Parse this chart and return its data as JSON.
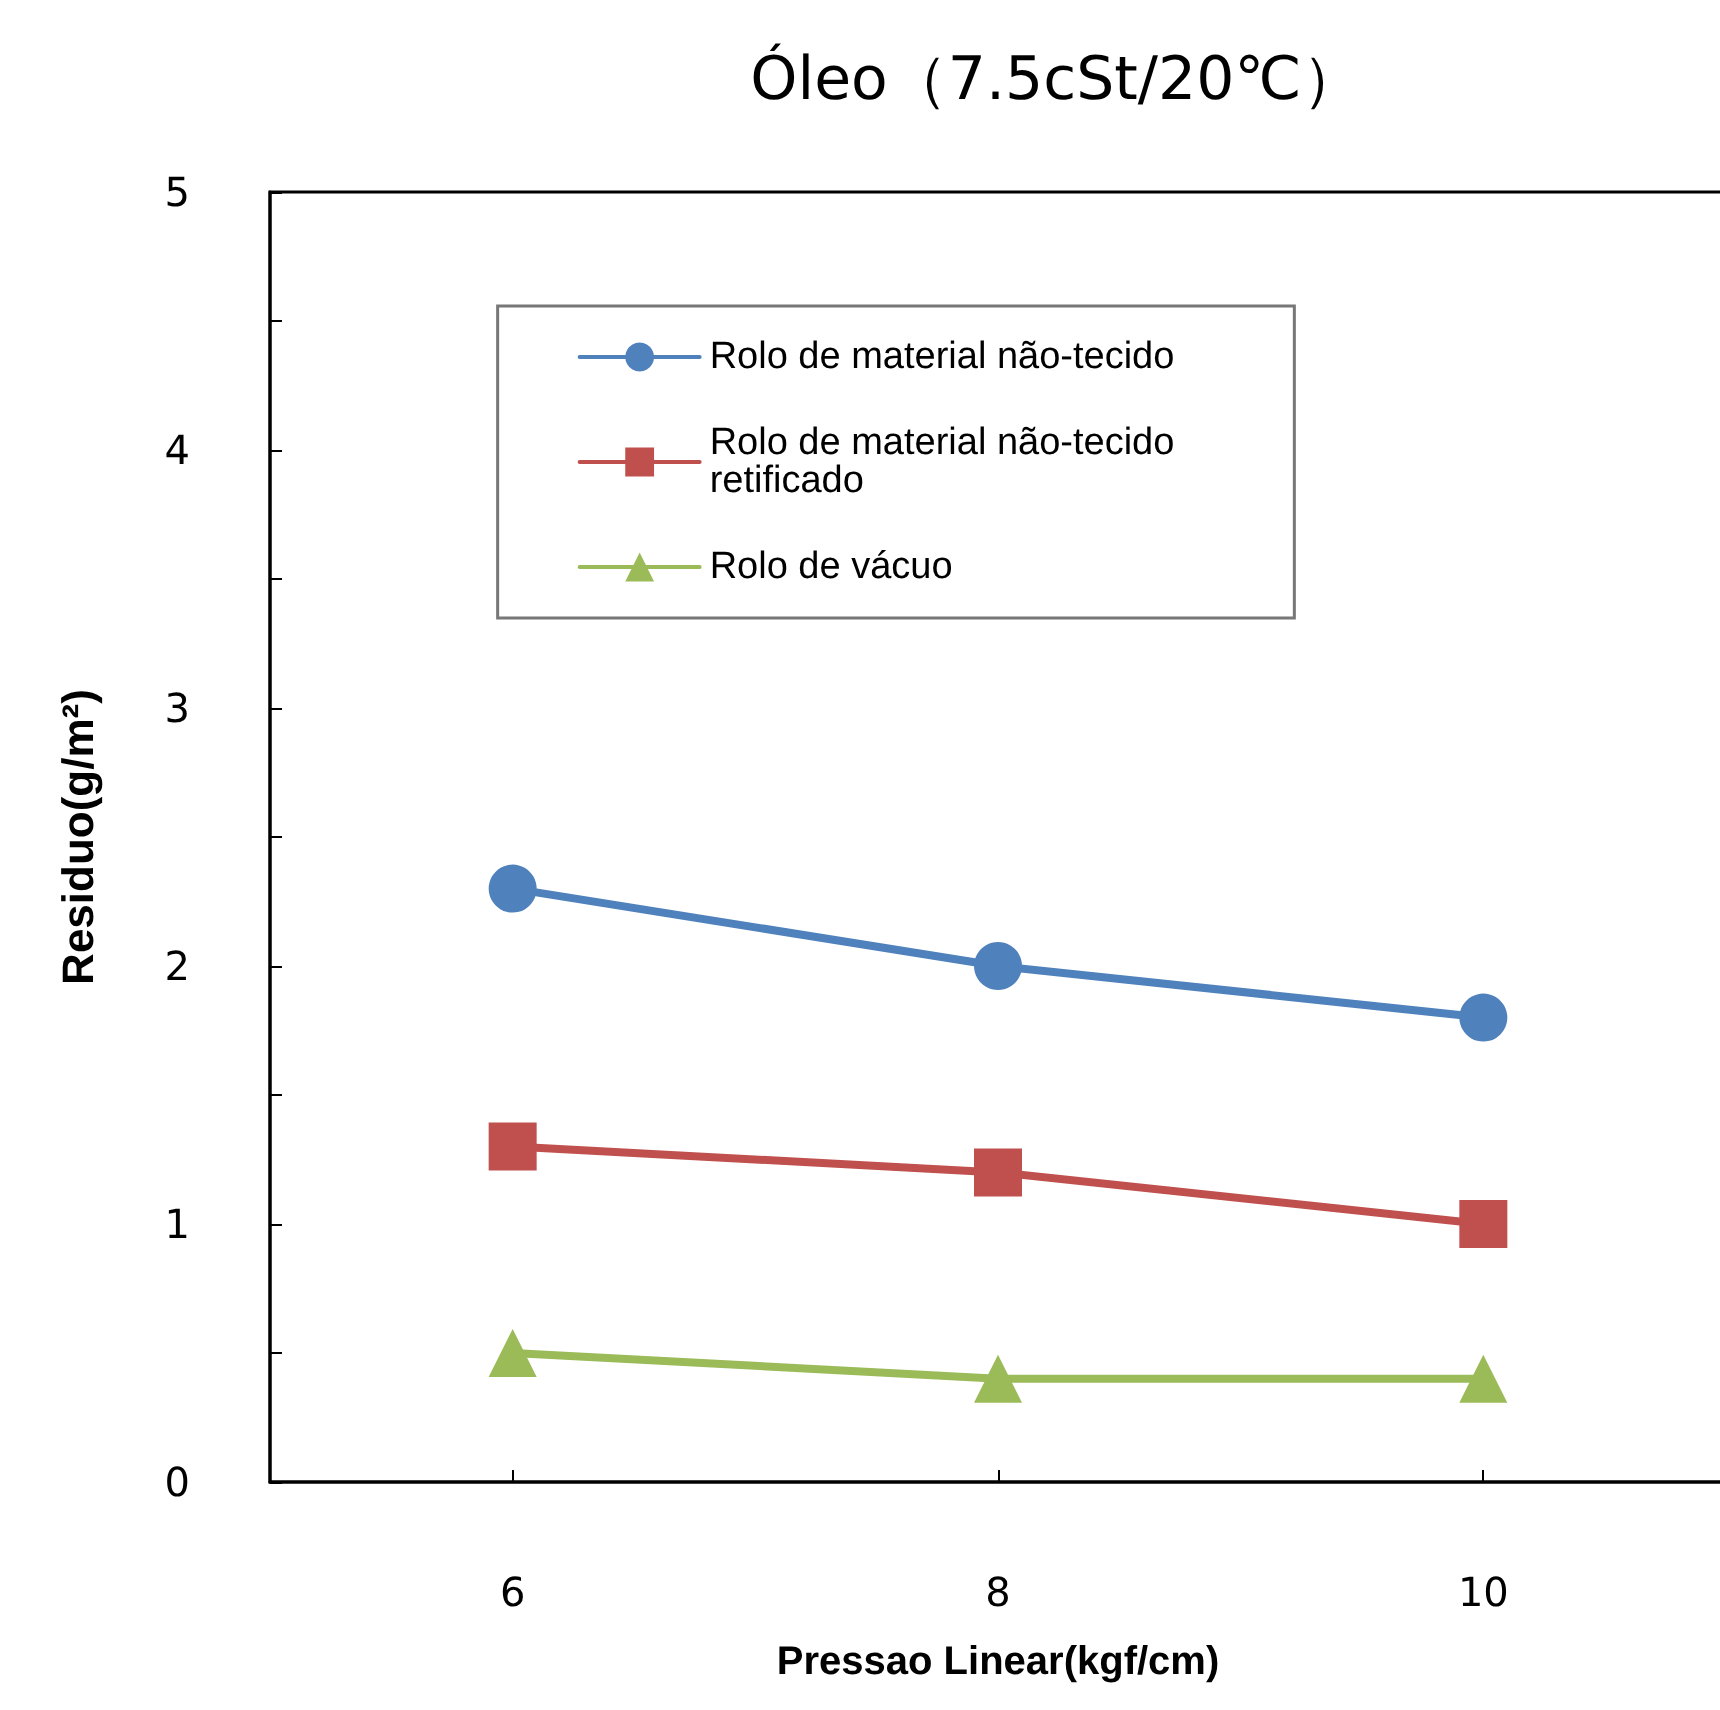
{
  "chart_data": {
    "type": "line",
    "title": "Óleo（7.5cSt/20℃）",
    "xlabel": "Pressao Linear(kgf/cm)",
    "ylabel": "Residuo(g/m²)",
    "x": [
      6,
      8,
      10
    ],
    "xlim": [
      5,
      11
    ],
    "xticks": [
      6,
      8,
      10
    ],
    "ylim": [
      0,
      5
    ],
    "yticks": [
      0,
      {
        "value": 0.5,
        "label": null
      },
      1,
      {
        "value": 1.5,
        "label": null
      },
      2,
      {
        "value": 2.5,
        "label": null
      },
      3,
      {
        "value": 3.5,
        "label": null
      },
      4,
      {
        "value": 4.5,
        "label": null
      },
      5
    ],
    "grid": false,
    "legend": "top",
    "line_style": "solid",
    "series": [
      {
        "name": "Rolo de material não-tecido",
        "color": "#4f81bd",
        "marker": "circle",
        "values": [
          2.3,
          2.0,
          1.8
        ]
      },
      {
        "name": "Rolo de material não-tecido retificado",
        "color": "#c0504d",
        "marker": "square",
        "values": [
          1.3,
          1.2,
          1.0
        ]
      },
      {
        "name": "Rolo de vácuo",
        "color": "#9bbb59",
        "marker": "triangle",
        "values": [
          0.5,
          0.4,
          0.4
        ]
      }
    ]
  }
}
